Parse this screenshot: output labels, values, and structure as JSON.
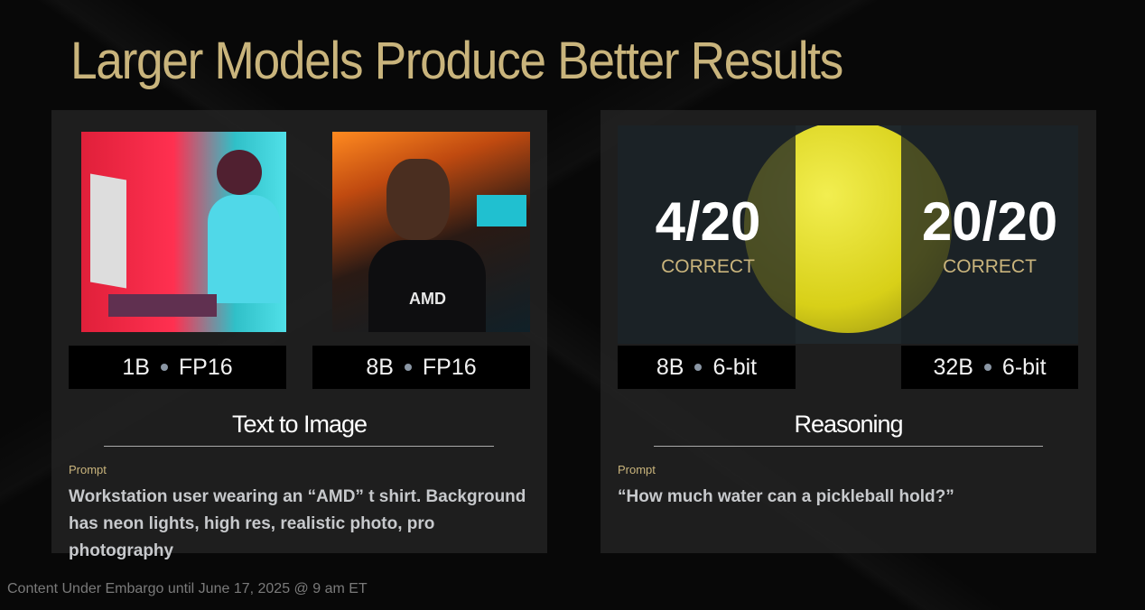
{
  "title": "Larger Models Produce Better Results",
  "text_to_image": {
    "images": [
      {
        "label_model": "1B",
        "label_precision": "FP16"
      },
      {
        "label_model": "8B",
        "label_precision": "FP16"
      }
    ],
    "shirt_text": "AMD",
    "section": "Text to Image",
    "prompt_label": "Prompt",
    "prompt": "Workstation user wearing an “AMD” t shirt. Background has neon lights, high res, realistic photo, pro photography"
  },
  "reasoning": {
    "results": [
      {
        "score": "4/20",
        "status": "CORRECT",
        "label_model": "8B",
        "label_precision": "6-bit"
      },
      {
        "score": "20/20",
        "status": "CORRECT",
        "label_model": "32B",
        "label_precision": "6-bit"
      }
    ],
    "section": "Reasoning",
    "prompt_label": "Prompt",
    "prompt": "“How much water can a pickleball hold?”"
  },
  "footer": "Content Under Embargo until June 17, 2025 @ 9 am ET",
  "colors": {
    "accent": "#c9b47c",
    "ball": "#e6e02a"
  }
}
